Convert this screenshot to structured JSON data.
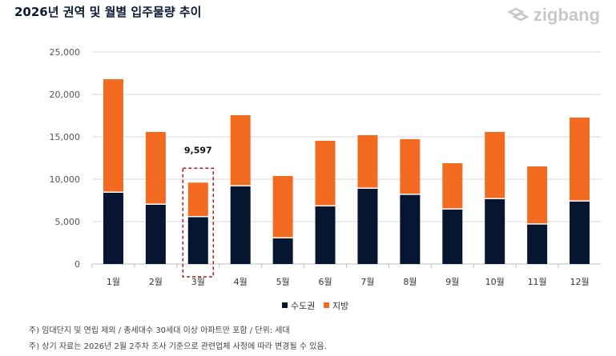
{
  "title": "2026년 권역 및 월별 입주물량 추이",
  "logo": "zigbang",
  "chart_data": {
    "type": "bar",
    "stacked": true,
    "categories": [
      "1월",
      "2월",
      "3월",
      "4월",
      "5월",
      "6월",
      "7월",
      "8월",
      "9월",
      "10월",
      "11월",
      "12월"
    ],
    "series": [
      {
        "name": "수도권",
        "color": "#061630",
        "values": [
          8400,
          6980,
          5520,
          9150,
          3020,
          6790,
          8870,
          8150,
          6420,
          7640,
          4650,
          7360
        ]
      },
      {
        "name": "지방",
        "color": "#f26b21",
        "values": [
          13390,
          8590,
          4077,
          8400,
          7360,
          7740,
          6320,
          6570,
          5470,
          7930,
          6860,
          9910
        ]
      }
    ],
    "ylim": [
      0,
      25000
    ],
    "yticks": [
      "0",
      "5,000",
      "10,000",
      "15,000",
      "20,000",
      "25,000"
    ],
    "grid": true,
    "legend": "bottom",
    "annotation": {
      "category": "3월",
      "label": "9,597"
    }
  },
  "notes": [
    "주) 임대단지 및 연립 제외 / 총세대수 30세대 이상 아파트만 포함 / 단위: 세대",
    "주) 상기 자료는 2026년 2월 2주차 조사 기준으로 관련업체 사정에 따라 변경될 수 있음."
  ]
}
